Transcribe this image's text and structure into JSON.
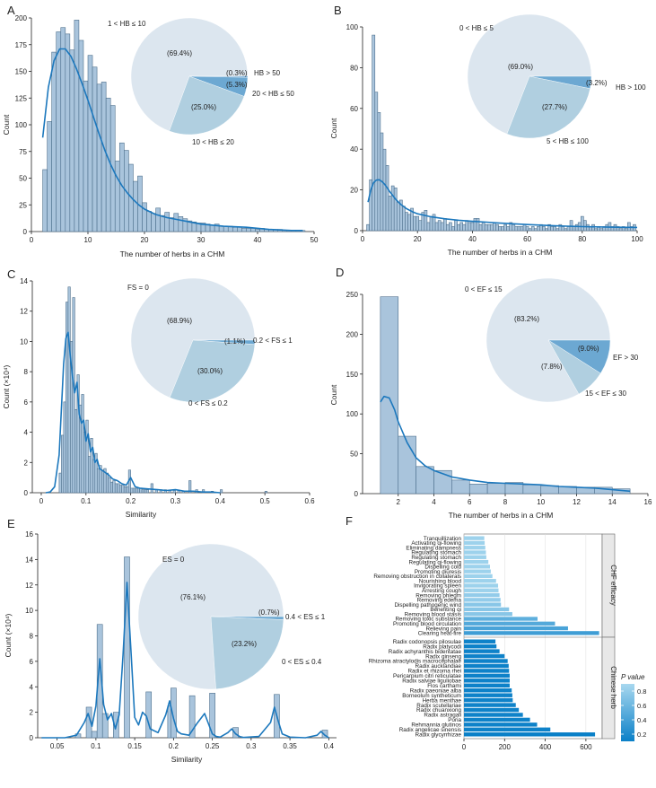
{
  "figure": {
    "background": "#ffffff"
  },
  "colors": {
    "bar": "#a9c4dc",
    "bar_stroke": "#4d6f8c",
    "kde": "#1c78bd",
    "pie_big": "#dce6ef",
    "pie_mid": "#b0cfe0",
    "pie_small": "#6ca8d2",
    "pie_tiny": "#3c8ac8",
    "pval_low": "#0a80c8",
    "pval_high": "#a8d8ef"
  },
  "chart_data": [
    {
      "panel": "A",
      "type": "bar",
      "xlabel": "The number of herbs in a CHM",
      "ylabel": "Count",
      "xlim": [
        0,
        50
      ],
      "ylim": [
        0,
        200
      ],
      "xticks": [
        0,
        10,
        20,
        30,
        40,
        50
      ],
      "yticks": [
        0,
        25,
        50,
        75,
        100,
        125,
        150,
        175,
        200
      ],
      "binwidth": 0.8,
      "x": [
        2.4,
        3.2,
        4.0,
        4.8,
        5.6,
        6.4,
        7.2,
        8.0,
        8.8,
        9.6,
        10.4,
        11.2,
        12.0,
        12.8,
        13.6,
        14.4,
        15.2,
        16.0,
        16.8,
        17.6,
        18.4,
        19.2,
        20.0,
        20.8,
        21.6,
        22.4,
        23.2,
        24.0,
        24.8,
        25.6,
        26.4,
        27.2,
        28.0,
        28.8,
        29.6,
        30.4,
        31.2,
        32.0,
        32.8,
        33.6,
        34.4,
        35.2,
        36.0,
        36.8,
        37.6,
        38.4,
        39.2,
        40.0,
        40.8,
        41.6,
        42.4,
        43.2,
        44.0,
        44.8,
        45.6,
        46.4,
        47.2,
        48.0
      ],
      "values": [
        58,
        103,
        168,
        187,
        191,
        185,
        170,
        198,
        179,
        141,
        165,
        154,
        138,
        140,
        125,
        118,
        66,
        83,
        76,
        63,
        47,
        52,
        27,
        19,
        17,
        22,
        15,
        18,
        13,
        17,
        14,
        12,
        10,
        9,
        8,
        8,
        7,
        6,
        7,
        5,
        5,
        5,
        4,
        4,
        3,
        3,
        3,
        2,
        3,
        2,
        2,
        2,
        2,
        1,
        1,
        1,
        1,
        1
      ],
      "kde_x": [
        2,
        3,
        4,
        5,
        6,
        7,
        8,
        9,
        10,
        11,
        12,
        13,
        14,
        15,
        16,
        17,
        18,
        19,
        20,
        22,
        24,
        26,
        28,
        30,
        34,
        38,
        42,
        46,
        48
      ],
      "kde_y": [
        88,
        135,
        160,
        171,
        171,
        164,
        152,
        138,
        123,
        107,
        91,
        76,
        63,
        52,
        43,
        36,
        30,
        25,
        21,
        16,
        13,
        11,
        9,
        7,
        5,
        4,
        2,
        1,
        1
      ],
      "pie": {
        "slices": [
          {
            "label": "1 < HB ≤ 10",
            "pct_text": "(69.4%)",
            "value": 69.4,
            "color": "#dce6ef"
          },
          {
            "label": "HB > 50",
            "pct_text": "(0.3%)",
            "value": 0.3,
            "color": "#3c8ac8"
          },
          {
            "label": "20 < HB ≤ 50",
            "pct_text": "(5.3%)",
            "value": 5.3,
            "color": "#6ca8d2"
          },
          {
            "label": "10 < HB ≤ 20",
            "pct_text": "(25.0%)",
            "value": 25.0,
            "color": "#b0cfe0"
          }
        ]
      }
    },
    {
      "panel": "B",
      "type": "bar",
      "xlabel": "The number of herbs in a CHM",
      "ylabel": "Count",
      "xlim": [
        0,
        100
      ],
      "ylim": [
        0,
        100
      ],
      "xticks": [
        0,
        20,
        40,
        60,
        80,
        100
      ],
      "yticks": [
        0,
        20,
        40,
        60,
        80,
        100
      ],
      "binwidth": 1,
      "x": [
        2,
        3,
        4,
        5,
        6,
        7,
        8,
        9,
        10,
        11,
        12,
        13,
        14,
        15,
        16,
        17,
        18,
        19,
        20,
        21,
        22,
        23,
        24,
        25,
        26,
        27,
        28,
        29,
        30,
        31,
        32,
        33,
        34,
        35,
        36,
        37,
        38,
        39,
        40,
        41,
        42,
        43,
        44,
        45,
        46,
        47,
        48,
        49,
        50,
        51,
        52,
        53,
        54,
        55,
        56,
        57,
        58,
        59,
        60,
        61,
        62,
        63,
        64,
        65,
        66,
        67,
        68,
        69,
        70,
        71,
        72,
        73,
        74,
        75,
        76,
        77,
        78,
        79,
        80,
        81,
        82,
        83,
        84,
        85,
        86,
        87,
        88,
        89,
        90,
        91,
        92,
        93,
        94,
        95,
        96,
        97,
        98,
        99
      ],
      "values": [
        3,
        25,
        96,
        68,
        58,
        48,
        40,
        32,
        17,
        22,
        21,
        14,
        15,
        12,
        9,
        8,
        11,
        7,
        7,
        5,
        9,
        10,
        4,
        7,
        8,
        4,
        5,
        4,
        6,
        3,
        4,
        2,
        5,
        3,
        4,
        3,
        5,
        4,
        4,
        6,
        6,
        3,
        4,
        3,
        3,
        3,
        4,
        3,
        2,
        2,
        3,
        2,
        4,
        3,
        2,
        2,
        2,
        3,
        2,
        1,
        2,
        1,
        2,
        3,
        2,
        1,
        3,
        2,
        2,
        1,
        3,
        2,
        1,
        2,
        5,
        2,
        3,
        4,
        7,
        5,
        3,
        2,
        3,
        1,
        2,
        1,
        2,
        3,
        4,
        2,
        3,
        2,
        1,
        2,
        1,
        4,
        2,
        3
      ],
      "kde_x": [
        2,
        3,
        4,
        5,
        6,
        7,
        8,
        9,
        10,
        12,
        14,
        16,
        18,
        20,
        25,
        30,
        35,
        40,
        45,
        50,
        60,
        70,
        80,
        90,
        100
      ],
      "kde_y": [
        14,
        20,
        23.5,
        24.8,
        25,
        24.2,
        22.8,
        21,
        19,
        15.5,
        12.8,
        10.8,
        9.4,
        8.3,
        6.8,
        5.8,
        5.1,
        4.6,
        4.2,
        3.7,
        3.0,
        2.4,
        2.0,
        1.7,
        1.6
      ],
      "pie": {
        "slices": [
          {
            "label": "0 < HB ≤ 5",
            "pct_text": "(69.0%)",
            "value": 69.0,
            "color": "#dce6ef"
          },
          {
            "label": "HB > 100",
            "pct_text": "(3.2%)",
            "value": 3.2,
            "color": "#6ca8d2"
          },
          {
            "label": "5 < HB ≤ 100",
            "pct_text": "(27.7%)",
            "value": 27.7,
            "color": "#b0cfe0"
          }
        ]
      }
    },
    {
      "panel": "C",
      "type": "bar",
      "xlabel": "Similarity",
      "ylabel": "Count (×10⁴)",
      "xlim": [
        -0.02,
        0.6
      ],
      "ylim": [
        0,
        14
      ],
      "xticks": [
        0,
        0.1,
        0.2,
        0.3,
        0.4,
        0.5,
        0.6
      ],
      "yticks": [
        0,
        2,
        4,
        6,
        8,
        10,
        12,
        14
      ],
      "binwidth": 0.005,
      "x": [
        0.0425,
        0.0475,
        0.0525,
        0.0575,
        0.0625,
        0.0675,
        0.0725,
        0.0775,
        0.0825,
        0.0875,
        0.0925,
        0.0975,
        0.1025,
        0.1075,
        0.1125,
        0.1175,
        0.1225,
        0.1275,
        0.1325,
        0.1375,
        0.1425,
        0.1475,
        0.1525,
        0.1575,
        0.1625,
        0.1675,
        0.1725,
        0.1775,
        0.1825,
        0.1875,
        0.1925,
        0.1975,
        0.2025,
        0.2075,
        0.2125,
        0.2175,
        0.2225,
        0.2275,
        0.2325,
        0.2375,
        0.2475,
        0.2575,
        0.2675,
        0.2775,
        0.2875,
        0.2975,
        0.3075,
        0.3175,
        0.3325,
        0.3475,
        0.3625,
        0.3825,
        0.4025,
        0.5025
      ],
      "values": [
        1.3,
        3.8,
        6.0,
        12.6,
        13.6,
        10.0,
        12.9,
        5.5,
        7.8,
        5.8,
        6.5,
        4.0,
        4.8,
        2.4,
        3.6,
        2.2,
        2.6,
        1.6,
        1.8,
        1.5,
        1.6,
        1.3,
        1.0,
        0.7,
        0.8,
        0.6,
        0.6,
        0.5,
        0.5,
        0.4,
        0.4,
        1.5,
        0.3,
        0.3,
        0.3,
        0.3,
        0.3,
        0.2,
        0.2,
        0.2,
        0.6,
        0.2,
        0.2,
        0.2,
        0.15,
        0.15,
        0.15,
        0.1,
        0.8,
        0.2,
        0.2,
        0.1,
        0.2,
        0.1
      ],
      "kde_x": [
        0.01,
        0.02,
        0.03,
        0.04,
        0.045,
        0.05,
        0.055,
        0.06,
        0.065,
        0.07,
        0.075,
        0.08,
        0.085,
        0.09,
        0.095,
        0.1,
        0.105,
        0.11,
        0.115,
        0.12,
        0.125,
        0.13,
        0.14,
        0.15,
        0.16,
        0.17,
        0.18,
        0.19,
        0.2,
        0.21,
        0.22,
        0.24,
        0.26,
        0.28,
        0.3,
        0.32,
        0.34,
        0.36,
        0.38,
        0.4
      ],
      "kde_y": [
        0,
        0.05,
        0.4,
        2.5,
        5.5,
        8.5,
        10.2,
        10.6,
        9.0,
        7.6,
        6.6,
        7.3,
        5.2,
        4.6,
        4.8,
        3.4,
        3.9,
        2.7,
        3.0,
        2.0,
        2.2,
        1.6,
        1.4,
        1.2,
        0.9,
        0.8,
        0.6,
        0.5,
        1.0,
        0.4,
        0.3,
        0.25,
        0.2,
        0.15,
        0.2,
        0.1,
        0.1,
        0.05,
        0.05,
        0
      ],
      "pie": {
        "slices": [
          {
            "label": "FS = 0",
            "pct_text": "(68.9%)",
            "value": 68.9,
            "color": "#dce6ef"
          },
          {
            "label": "0.2 < FS ≤ 1",
            "pct_text": "(1.1%)",
            "value": 1.1,
            "color": "#6ca8d2"
          },
          {
            "label": "0 < FS ≤ 0.2",
            "pct_text": "(30.0%)",
            "value": 30.0,
            "color": "#b0cfe0"
          }
        ]
      }
    },
    {
      "panel": "D",
      "type": "bar",
      "xlabel": "The number of herbs in a CHM",
      "ylabel": "Count",
      "xlim": [
        0,
        16
      ],
      "ylim": [
        0,
        250
      ],
      "xticks": [
        2,
        4,
        6,
        8,
        10,
        12,
        14,
        16
      ],
      "yticks": [
        0,
        50,
        100,
        150,
        200,
        250
      ],
      "binwidth": 1,
      "x": [
        1.5,
        2.5,
        3.5,
        4.5,
        5.5,
        6.5,
        7.5,
        8.5,
        9.5,
        10.5,
        11.5,
        12.5,
        13.5,
        14.5
      ],
      "values": [
        247,
        72,
        34,
        29,
        17,
        12,
        13,
        14,
        11,
        10,
        9,
        8,
        8,
        6
      ],
      "kde_x": [
        1.0,
        1.2,
        1.5,
        1.8,
        2.0,
        2.5,
        3.0,
        3.5,
        4.0,
        5.0,
        6.0,
        7.0,
        8.0,
        9.0,
        10.0,
        11.0,
        12.0,
        13.0,
        14.0,
        15.0
      ],
      "kde_y": [
        115,
        122,
        120,
        105,
        90,
        64,
        45,
        35,
        29,
        21,
        17,
        14,
        13,
        12,
        11,
        9,
        8,
        7,
        5,
        3
      ],
      "pie": {
        "slices": [
          {
            "label": "0 < EF ≤ 15",
            "pct_text": "(83.2%)",
            "value": 83.2,
            "color": "#dce6ef"
          },
          {
            "label": "EF > 30",
            "pct_text": "(9.0%)",
            "value": 9.0,
            "color": "#6ca8d2"
          },
          {
            "label": "15 < EF ≤ 30",
            "pct_text": "(7.8%)",
            "value": 7.8,
            "color": "#b0cfe0"
          }
        ]
      }
    },
    {
      "panel": "E",
      "type": "bar",
      "xlabel": "Similarity",
      "ylabel": "Count (×10⁴)",
      "xlim": [
        0.025,
        0.41
      ],
      "ylim": [
        0,
        16
      ],
      "xticks": [
        0.05,
        0.1,
        0.15,
        0.2,
        0.25,
        0.3,
        0.35,
        0.4
      ],
      "yticks": [
        0,
        2,
        4,
        6,
        8,
        10,
        12,
        14,
        16
      ],
      "binwidth": 0.007,
      "x": [
        0.077,
        0.091,
        0.098,
        0.105,
        0.112,
        0.126,
        0.14,
        0.168,
        0.196,
        0.2,
        0.224,
        0.25,
        0.28,
        0.333,
        0.395
      ],
      "values": [
        0.3,
        2.4,
        0.5,
        8.9,
        1.9,
        2.0,
        14.2,
        3.6,
        2.5,
        3.9,
        3.3,
        3.5,
        0.8,
        3.4,
        0.6
      ],
      "kde_x": [
        0.03,
        0.06,
        0.075,
        0.085,
        0.09,
        0.095,
        0.1,
        0.105,
        0.11,
        0.115,
        0.12,
        0.125,
        0.13,
        0.135,
        0.14,
        0.145,
        0.15,
        0.155,
        0.16,
        0.165,
        0.17,
        0.18,
        0.19,
        0.195,
        0.2,
        0.205,
        0.21,
        0.22,
        0.23,
        0.24,
        0.245,
        0.25,
        0.255,
        0.26,
        0.27,
        0.275,
        0.28,
        0.285,
        0.29,
        0.31,
        0.325,
        0.33,
        0.335,
        0.34,
        0.35,
        0.37,
        0.385,
        0.39,
        0.395,
        0.4
      ],
      "kde_y": [
        0,
        0,
        0.2,
        1.2,
        1.9,
        0.9,
        2.5,
        6.2,
        2.6,
        1.4,
        1.9,
        0.7,
        1.8,
        6.5,
        12.2,
        7.0,
        1.6,
        1.0,
        2.0,
        1.7,
        0.7,
        0.4,
        1.8,
        2.9,
        1.5,
        0.5,
        0.3,
        0.2,
        1.1,
        1.9,
        1.1,
        0.3,
        0.1,
        0.05,
        0.4,
        0.7,
        0.3,
        0.1,
        0.02,
        0.1,
        1.2,
        2.4,
        1.3,
        0.3,
        0.05,
        0,
        0.2,
        0.5,
        0.2,
        0
      ],
      "pie": {
        "slices": [
          {
            "label": "ES = 0",
            "pct_text": "(76.1%)",
            "value": 76.1,
            "color": "#dce6ef"
          },
          {
            "label": "0.4 < ES ≤ 1",
            "pct_text": "(0.7%)",
            "value": 0.7,
            "color": "#6ca8d2"
          },
          {
            "label": "0 < ES ≤ 0.4",
            "pct_text": "(23.2%)",
            "value": 23.2,
            "color": "#b0cfe0"
          }
        ]
      }
    },
    {
      "panel": "F",
      "type": "bar",
      "orientation": "horizontal",
      "xlim": [
        0,
        680
      ],
      "xticks": [
        0,
        200,
        400,
        600
      ],
      "legend_title": "P value",
      "legend_ticks": [
        0.2,
        0.4,
        0.6,
        0.8
      ],
      "groups": [
        {
          "name": "CHF efficacy",
          "categories": [
            "Tranquillization",
            "Activating qi-flowing",
            "Eliminating dampness",
            "Regulating stomach",
            "Regulating stomach",
            "Regulating qi-flowing",
            "Dispelling cold",
            "Promoting diuresis",
            "Removing obstruction in collaterals",
            "Nourishing blood",
            "Invigorating spleen",
            "Arresting cough",
            "Removing phlegm",
            "Removing edema",
            "Dispelling pathogenic wind",
            "Benefiting qi",
            "Removing blood stasis",
            "Removing toxic substance",
            "Promoting blood circulation",
            "Relieving pain",
            "Clearing heat-fire"
          ],
          "values": [
            100,
            102,
            105,
            108,
            110,
            120,
            128,
            132,
            140,
            158,
            168,
            170,
            175,
            180,
            182,
            222,
            238,
            362,
            448,
            512,
            665
          ],
          "pvalues": [
            0.8,
            0.8,
            0.8,
            0.8,
            0.8,
            0.8,
            0.8,
            0.8,
            0.8,
            0.8,
            0.8,
            0.8,
            0.75,
            0.75,
            0.7,
            0.7,
            0.7,
            0.5,
            0.45,
            0.4,
            0.35
          ]
        },
        {
          "name": "Chinese herb",
          "categories": [
            "Radix codonopsis pilosulae",
            "Radix platycodi",
            "Radix achyranthis bidentatae",
            "Radix ginseng",
            "Rhizoma atractylodis macrocephalae",
            "Radix aucklandiae",
            "Radix et rhizoma rhei",
            "Pericarpium citri reticulatae",
            "Radix salviae liguliobae",
            "Flos carthami",
            "Radix paeoniae alba",
            "Borneolum syntheticum",
            "Herba menthae",
            "Radix scutellariae",
            "Radix chuanxiong",
            "Radix astragali",
            "Poria",
            "Rehmannia glutinos",
            "Radix angelicae sinensis",
            "Radix glycyrrhizae"
          ],
          "values": [
            155,
            160,
            175,
            200,
            215,
            220,
            222,
            225,
            225,
            225,
            235,
            238,
            240,
            255,
            270,
            290,
            325,
            360,
            425,
            645
          ],
          "pvalues": [
            0.12,
            0.12,
            0.12,
            0.12,
            0.12,
            0.12,
            0.12,
            0.12,
            0.12,
            0.12,
            0.12,
            0.12,
            0.12,
            0.12,
            0.12,
            0.12,
            0.12,
            0.12,
            0.12,
            0.1
          ]
        }
      ]
    }
  ]
}
